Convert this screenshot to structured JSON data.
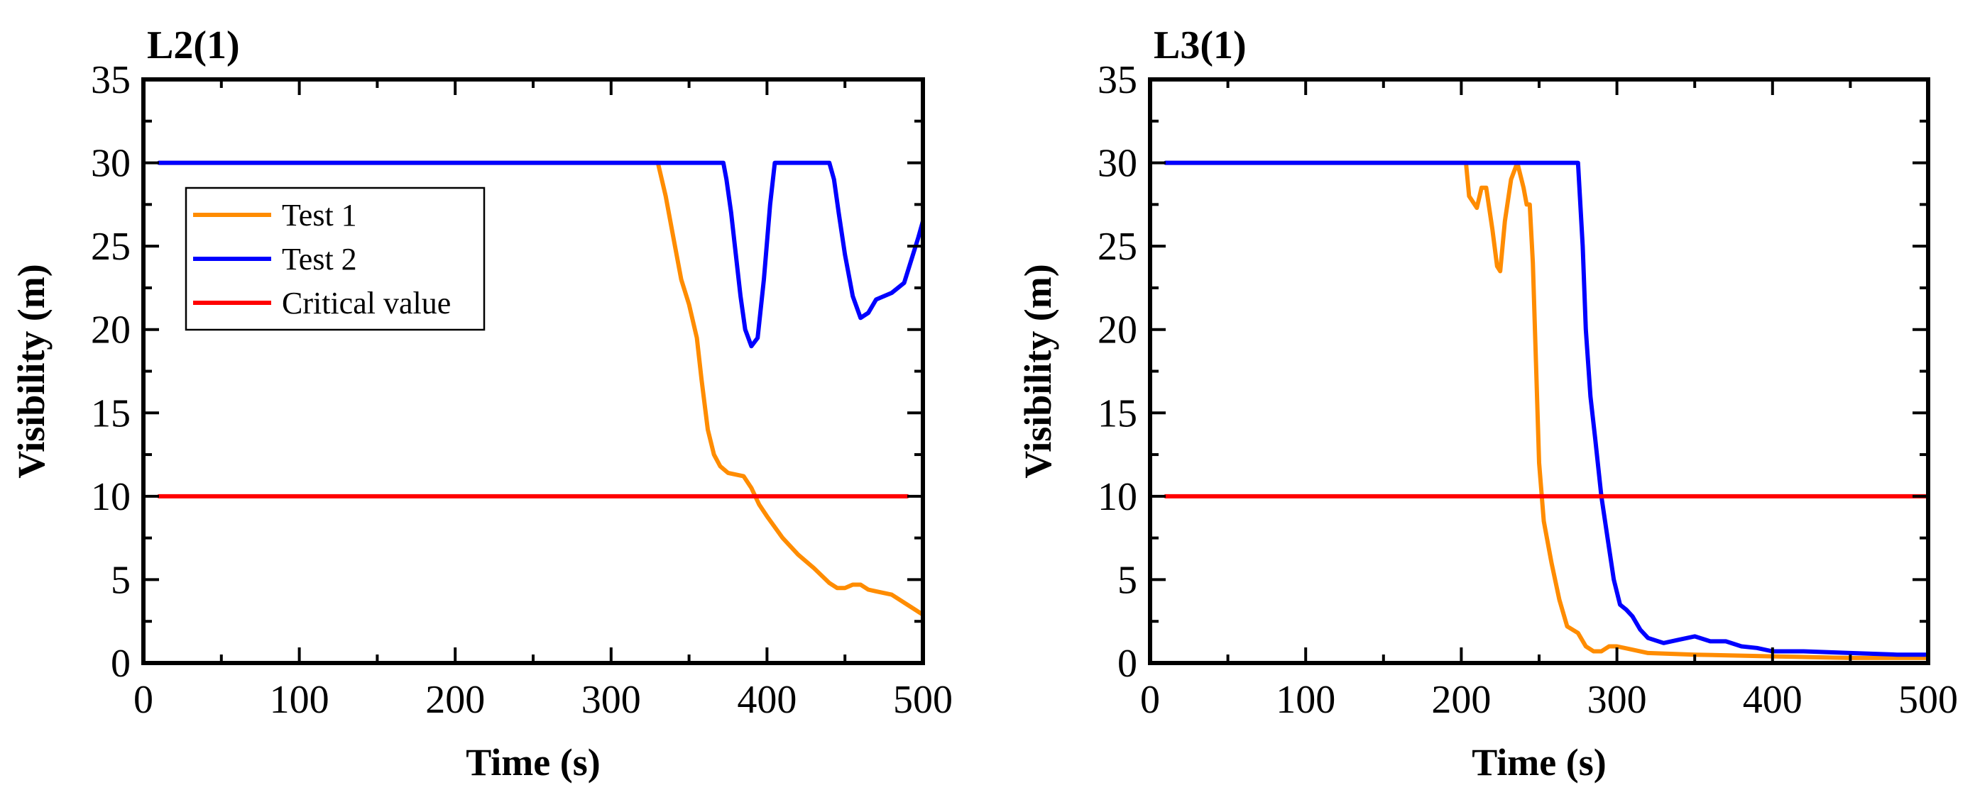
{
  "colors": {
    "test1": "#FF8C00",
    "test2": "#0000FF",
    "critical": "#FF0000"
  },
  "chart_data": [
    {
      "type": "line",
      "title": "L2(1)",
      "xlabel": "Time (s)",
      "ylabel": "Visibility (m)",
      "xlim": [
        0,
        500
      ],
      "ylim": [
        0,
        35
      ],
      "xticks": [
        "0",
        "100",
        "200",
        "300",
        "400",
        "500"
      ],
      "yticks": [
        "0",
        "5",
        "10",
        "15",
        "20",
        "25",
        "30",
        "35"
      ],
      "legend": {
        "position": "upper-left",
        "entries": [
          "Test 1",
          "Test 2",
          "Critical value"
        ]
      },
      "series": [
        {
          "name": "Test 1",
          "color": "#FF8C00",
          "points": [
            [
              10,
              30
            ],
            [
              330,
              30
            ],
            [
              335,
              28
            ],
            [
              340,
              25.5
            ],
            [
              345,
              23
            ],
            [
              350,
              21.5
            ],
            [
              355,
              19.5
            ],
            [
              358,
              17
            ],
            [
              362,
              14
            ],
            [
              366,
              12.5
            ],
            [
              370,
              11.8
            ],
            [
              375,
              11.4
            ],
            [
              385,
              11.2
            ],
            [
              390,
              10.5
            ],
            [
              395,
              9.5
            ],
            [
              400,
              8.8
            ],
            [
              410,
              7.5
            ],
            [
              420,
              6.5
            ],
            [
              430,
              5.7
            ],
            [
              440,
              4.8
            ],
            [
              445,
              4.5
            ],
            [
              450,
              4.5
            ],
            [
              455,
              4.7
            ],
            [
              460,
              4.7
            ],
            [
              465,
              4.4
            ],
            [
              470,
              4.3
            ],
            [
              480,
              4.1
            ],
            [
              490,
              3.5
            ],
            [
              500,
              2.9
            ]
          ]
        },
        {
          "name": "Test 2",
          "color": "#0000FF",
          "points": [
            [
              10,
              30
            ],
            [
              372,
              30
            ],
            [
              374,
              29
            ],
            [
              377,
              27
            ],
            [
              380,
              24.5
            ],
            [
              383,
              22
            ],
            [
              386,
              20
            ],
            [
              390,
              19
            ],
            [
              394,
              19.5
            ],
            [
              398,
              23
            ],
            [
              402,
              27.5
            ],
            [
              405,
              30
            ],
            [
              440,
              30
            ],
            [
              443,
              29
            ],
            [
              446,
              27
            ],
            [
              450,
              24.5
            ],
            [
              455,
              22
            ],
            [
              460,
              20.7
            ],
            [
              465,
              21
            ],
            [
              470,
              21.8
            ],
            [
              480,
              22.2
            ],
            [
              488,
              22.8
            ],
            [
              492,
              24
            ],
            [
              497,
              25.5
            ],
            [
              500,
              26.5
            ]
          ]
        },
        {
          "name": "Critical value",
          "color": "#FF0000",
          "points": [
            [
              10,
              10
            ],
            [
              490,
              10
            ]
          ]
        }
      ]
    },
    {
      "type": "line",
      "title": "L3(1)",
      "xlabel": "Time (s)",
      "ylabel": "Visibility (m)",
      "xlim": [
        0,
        500
      ],
      "ylim": [
        0,
        35
      ],
      "xticks": [
        "0",
        "100",
        "200",
        "300",
        "400",
        "500"
      ],
      "yticks": [
        "0",
        "5",
        "10",
        "15",
        "20",
        "25",
        "30",
        "35"
      ],
      "series": [
        {
          "name": "Test 1",
          "color": "#FF8C00",
          "points": [
            [
              10,
              30
            ],
            [
              203,
              30
            ],
            [
              205,
              28
            ],
            [
              210,
              27.3
            ],
            [
              213,
              28.5
            ],
            [
              216,
              28.5
            ],
            [
              220,
              26
            ],
            [
              223,
              23.8
            ],
            [
              225,
              23.5
            ],
            [
              228,
              26.5
            ],
            [
              232,
              29
            ],
            [
              236,
              30
            ],
            [
              240,
              28.5
            ],
            [
              242,
              27.5
            ],
            [
              244,
              27.5
            ],
            [
              246,
              24
            ],
            [
              248,
              18
            ],
            [
              250,
              12
            ],
            [
              253,
              8.5
            ],
            [
              258,
              6
            ],
            [
              263,
              3.8
            ],
            [
              268,
              2.2
            ],
            [
              275,
              1.8
            ],
            [
              280,
              1
            ],
            [
              285,
              0.7
            ],
            [
              290,
              0.7
            ],
            [
              295,
              1
            ],
            [
              300,
              1
            ],
            [
              310,
              0.8
            ],
            [
              320,
              0.6
            ],
            [
              350,
              0.5
            ],
            [
              400,
              0.4
            ],
            [
              450,
              0.3
            ],
            [
              500,
              0.3
            ]
          ]
        },
        {
          "name": "Test 2",
          "color": "#0000FF",
          "points": [
            [
              10,
              30
            ],
            [
              275,
              30
            ],
            [
              278,
              25
            ],
            [
              280,
              20
            ],
            [
              283,
              16
            ],
            [
              286,
              13.5
            ],
            [
              290,
              10
            ],
            [
              294,
              7.5
            ],
            [
              298,
              5
            ],
            [
              302,
              3.5
            ],
            [
              306,
              3.2
            ],
            [
              310,
              2.8
            ],
            [
              315,
              2
            ],
            [
              320,
              1.5
            ],
            [
              330,
              1.2
            ],
            [
              340,
              1.4
            ],
            [
              350,
              1.6
            ],
            [
              360,
              1.3
            ],
            [
              370,
              1.3
            ],
            [
              380,
              1
            ],
            [
              390,
              0.9
            ],
            [
              400,
              0.7
            ],
            [
              420,
              0.7
            ],
            [
              450,
              0.6
            ],
            [
              480,
              0.5
            ],
            [
              500,
              0.5
            ]
          ]
        },
        {
          "name": "Critical value",
          "color": "#FF0000",
          "points": [
            [
              10,
              10
            ],
            [
              500,
              10
            ]
          ]
        }
      ]
    }
  ]
}
